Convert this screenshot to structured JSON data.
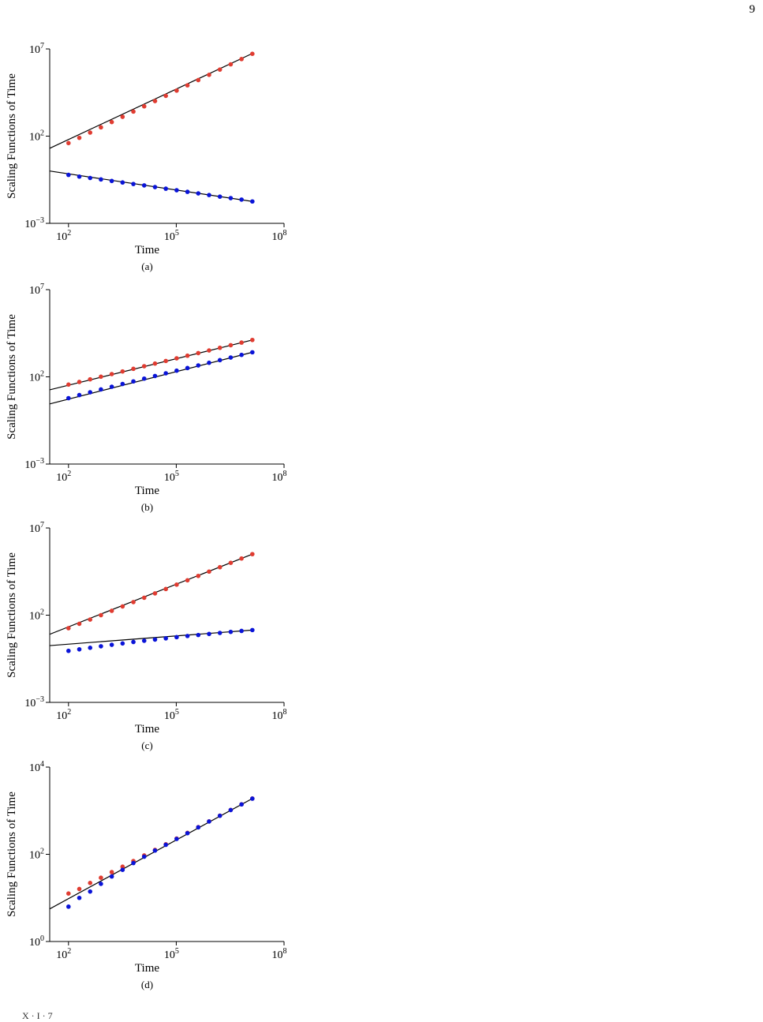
{
  "page_number": "9",
  "footer_fragment": "X · I · 7",
  "colors": {
    "red": "#e03c31",
    "blue": "#0a14d8",
    "fit": "#000000"
  },
  "chart_data": [
    {
      "type": "scatter",
      "caption": "(a)",
      "xlabel": "Time",
      "ylabel": "Scaling Functions of Time",
      "xscale": "log",
      "yscale": "log",
      "xlim": [
        30,
        100000000
      ],
      "ylim": [
        0.001,
        10000000
      ],
      "xticks": [
        {
          "v": 100,
          "b": "10",
          "e": "2"
        },
        {
          "v": 100000,
          "b": "10",
          "e": "5"
        },
        {
          "v": 100000000,
          "b": "10",
          "e": "8"
        }
      ],
      "yticks": [
        {
          "v": 0.001,
          "b": "10",
          "e": "−3"
        },
        {
          "v": 100,
          "b": "10",
          "e": "2"
        },
        {
          "v": 10000000,
          "b": "10",
          "e": "7"
        }
      ],
      "series": [
        {
          "color": "red",
          "x": [
            100,
            200,
            400,
            800,
            1600,
            3200,
            6400,
            12800,
            25600,
            51200,
            102400,
            204800,
            409600,
            819200,
            1638400,
            3276800,
            6553600,
            13107200
          ],
          "y": [
            40,
            80,
            160,
            320,
            640,
            1280,
            2560,
            5120,
            10240,
            20480,
            40960,
            81920,
            163840,
            327680,
            655360,
            1310720,
            2621440,
            5242880
          ]
        },
        {
          "color": "blue",
          "x": [
            100,
            200,
            400,
            800,
            1600,
            3200,
            6400,
            12800,
            25600,
            51200,
            102400,
            204800,
            409600,
            819200,
            1638400,
            3276800,
            6553600,
            13107200
          ],
          "y": [
            0.6,
            0.48,
            0.4,
            0.33,
            0.27,
            0.22,
            0.18,
            0.15,
            0.12,
            0.097,
            0.079,
            0.064,
            0.052,
            0.042,
            0.034,
            0.028,
            0.023,
            0.018
          ]
        }
      ],
      "fits": [
        {
          "x": [
            30,
            13107200
          ],
          "y": [
            20,
            5500000
          ]
        },
        {
          "x": [
            30,
            13107200
          ],
          "y": [
            1.0,
            0.018
          ]
        }
      ]
    },
    {
      "type": "scatter",
      "caption": "(b)",
      "xlabel": "Time",
      "ylabel": "Scaling Functions of Time",
      "xscale": "log",
      "yscale": "log",
      "xlim": [
        30,
        100000000
      ],
      "ylim": [
        0.001,
        10000000
      ],
      "xticks": [
        {
          "v": 100,
          "b": "10",
          "e": "2"
        },
        {
          "v": 100000,
          "b": "10",
          "e": "5"
        },
        {
          "v": 100000000,
          "b": "10",
          "e": "8"
        }
      ],
      "yticks": [
        {
          "v": 0.001,
          "b": "10",
          "e": "−3"
        },
        {
          "v": 100,
          "b": "10",
          "e": "2"
        },
        {
          "v": 10000000,
          "b": "10",
          "e": "7"
        }
      ],
      "series": [
        {
          "color": "red",
          "x": [
            100,
            200,
            400,
            800,
            1600,
            3200,
            6400,
            12800,
            25600,
            51200,
            102400,
            204800,
            409600,
            819200,
            1638400,
            3276800,
            6553600,
            13107200
          ],
          "y": [
            36,
            51,
            72,
            102,
            144,
            204,
            288,
            407,
            576,
            815,
            1152,
            1630,
            2304,
            3260,
            4608,
            6518,
            9216,
            13000
          ]
        },
        {
          "color": "blue",
          "x": [
            100,
            200,
            400,
            800,
            1600,
            3200,
            6400,
            12800,
            25600,
            51200,
            102400,
            204800,
            409600,
            819200,
            1638400,
            3276800,
            6553600,
            13107200
          ],
          "y": [
            6,
            9,
            13,
            19,
            27,
            39,
            55,
            79,
            112,
            160,
            226,
            320,
            452,
            640,
            905,
            1280,
            1810,
            2560
          ]
        }
      ],
      "fits": [
        {
          "x": [
            30,
            13107200
          ],
          "y": [
            18,
            13000
          ]
        },
        {
          "x": [
            30,
            13107200
          ],
          "y": [
            2.8,
            2560
          ]
        }
      ]
    },
    {
      "type": "scatter",
      "caption": "(c)",
      "xlabel": "Time",
      "ylabel": "Scaling Functions of Time",
      "xscale": "log",
      "yscale": "log",
      "xlim": [
        30,
        100000000
      ],
      "ylim": [
        0.001,
        10000000
      ],
      "xticks": [
        {
          "v": 100,
          "b": "10",
          "e": "2"
        },
        {
          "v": 100000,
          "b": "10",
          "e": "5"
        },
        {
          "v": 100000000,
          "b": "10",
          "e": "8"
        }
      ],
      "yticks": [
        {
          "v": 0.001,
          "b": "10",
          "e": "−3"
        },
        {
          "v": 100,
          "b": "10",
          "e": "2"
        },
        {
          "v": 10000000,
          "b": "10",
          "e": "7"
        }
      ],
      "series": [
        {
          "color": "red",
          "x": [
            100,
            200,
            400,
            800,
            1600,
            3200,
            6400,
            12800,
            25600,
            51200,
            102400,
            204800,
            409600,
            819200,
            1638400,
            3276800,
            6553600,
            13107200
          ],
          "y": [
            18,
            32,
            56,
            100,
            178,
            316,
            562,
            1000,
            1778,
            3162,
            5623,
            10000,
            17783,
            31623,
            56234,
            100000,
            177828,
            316228
          ]
        },
        {
          "color": "blue",
          "x": [
            100,
            200,
            400,
            800,
            1600,
            3200,
            6400,
            12800,
            25600,
            51200,
            102400,
            204800,
            409600,
            819200,
            1638400,
            3276800,
            6553600,
            13107200
          ],
          "y": [
            0.9,
            1.1,
            1.35,
            1.65,
            2.0,
            2.4,
            2.9,
            3.4,
            4.0,
            4.7,
            5.5,
            6.4,
            7.3,
            8.4,
            9.6,
            11,
            12.5,
            14
          ]
        }
      ],
      "fits": [
        {
          "x": [
            30,
            13107200
          ],
          "y": [
            8,
            316228
          ]
        },
        {
          "x": [
            30,
            13107200
          ],
          "y": [
            1.8,
            14
          ]
        }
      ]
    },
    {
      "type": "scatter",
      "caption": "(d)",
      "xlabel": "Time",
      "ylabel": "Scaling Functions of Time",
      "xscale": "log",
      "yscale": "log",
      "xlim": [
        30,
        100000000
      ],
      "ylim": [
        1,
        10000
      ],
      "xticks": [
        {
          "v": 100,
          "b": "10",
          "e": "2"
        },
        {
          "v": 100000,
          "b": "10",
          "e": "5"
        },
        {
          "v": 100000000,
          "b": "10",
          "e": "8"
        }
      ],
      "yticks": [
        {
          "v": 1,
          "b": "10",
          "e": "0"
        },
        {
          "v": 100,
          "b": "10",
          "e": "2"
        },
        {
          "v": 10000,
          "b": "10",
          "e": "4"
        }
      ],
      "series": [
        {
          "color": "red",
          "x": [
            100,
            200,
            400,
            800,
            1600,
            3200,
            6400,
            12800,
            25600,
            51200,
            102400,
            204800,
            409600,
            819200,
            1638400,
            3276800,
            6553600,
            13107200
          ],
          "y": [
            12.6,
            16,
            22,
            29,
            39,
            52,
            70,
            94,
            126,
            170,
            230,
            310,
            420,
            570,
            770,
            1040,
            1400,
            1900
          ]
        },
        {
          "color": "blue",
          "x": [
            100,
            200,
            400,
            800,
            1600,
            3200,
            6400,
            12800,
            25600,
            51200,
            102400,
            204800,
            409600,
            819200,
            1638400,
            3276800,
            6553600,
            13107200
          ],
          "y": [
            6.3,
            10,
            14,
            21,
            31,
            44,
            63,
            88,
            122,
            165,
            225,
            305,
            415,
            565,
            765,
            1035,
            1395,
            1890
          ]
        }
      ],
      "fits": [
        {
          "x": [
            30,
            13107200
          ],
          "y": [
            5.6,
            1900
          ]
        }
      ]
    }
  ]
}
